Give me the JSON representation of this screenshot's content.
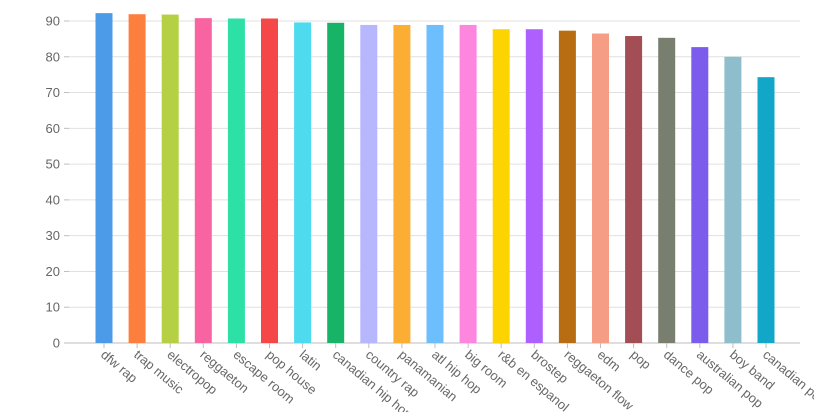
{
  "chart_data": {
    "type": "bar",
    "title": "",
    "xlabel": "",
    "ylabel": "",
    "ylim": [
      0,
      90
    ],
    "yticks": [
      0,
      10,
      20,
      30,
      40,
      50,
      60,
      70,
      80,
      90
    ],
    "grid": true,
    "categories": [
      "dfw rap",
      "trap music",
      "electropop",
      "reggaeton",
      "escape room",
      "pop house",
      "latin",
      "canadian hip hop",
      "country rap",
      "panamanian",
      "atl hip hop",
      "big room",
      "r&b en espanol",
      "brostep",
      "reggaeton flow",
      "edm",
      "pop",
      "dance pop",
      "australian pop",
      "boy band",
      "canadian pop"
    ],
    "values": [
      92.2,
      91.9,
      91.8,
      90.8,
      90.7,
      90.7,
      89.6,
      89.5,
      88.9,
      88.9,
      88.9,
      88.9,
      87.7,
      87.7,
      87.3,
      86.5,
      85.8,
      85.3,
      82.7,
      80.0,
      74.3
    ],
    "colors": [
      "#4c9be8",
      "#fd7f3e",
      "#b5d143",
      "#f863a2",
      "#2de0a6",
      "#f54747",
      "#4fdbef",
      "#17b467",
      "#b7b7fd",
      "#fcad33",
      "#6dbefc",
      "#fd86df",
      "#fdd300",
      "#ae60fe",
      "#b86d12",
      "#f59e85",
      "#a34d54",
      "#787f6f",
      "#7c5cec",
      "#8ebecb",
      "#12a6c8"
    ]
  }
}
